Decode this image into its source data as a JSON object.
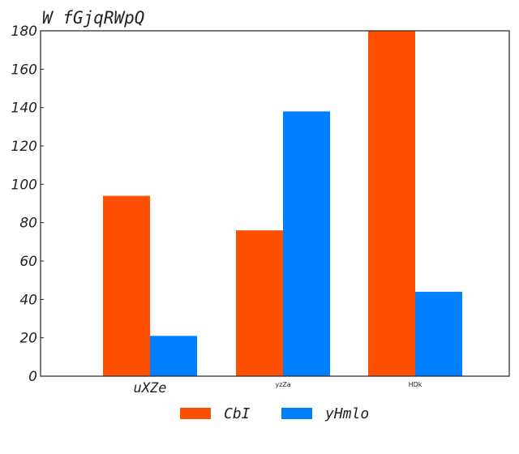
{
  "chart_data": {
    "type": "bar",
    "title": "W fGjqRWpQ",
    "xlabel": "",
    "ylabel": "",
    "categories": [
      "uXZe",
      "yzZa",
      "HDk"
    ],
    "series": [
      {
        "name": "CbI",
        "color": "#ff4f00",
        "values": [
          94,
          76,
          180
        ]
      },
      {
        "name": "yHmlo",
        "color": "#0080ff",
        "values": [
          21,
          138,
          44
        ]
      }
    ],
    "ylim": [
      0,
      180
    ],
    "yticks": [
      0,
      20,
      40,
      60,
      80,
      100,
      120,
      140,
      160,
      180
    ],
    "grid": false,
    "legend_position": "bottom-center"
  }
}
